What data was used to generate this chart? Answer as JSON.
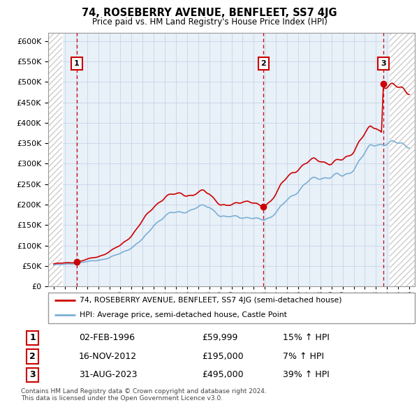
{
  "title": "74, ROSEBERRY AVENUE, BENFLEET, SS7 4JG",
  "subtitle": "Price paid vs. HM Land Registry's House Price Index (HPI)",
  "ylim": [
    0,
    620000
  ],
  "yticks": [
    0,
    50000,
    100000,
    150000,
    200000,
    250000,
    300000,
    350000,
    400000,
    450000,
    500000,
    550000,
    600000
  ],
  "xlim_start": 1993.5,
  "xlim_end": 2026.5,
  "hatch_left_end": 1994.75,
  "hatch_right_start": 2024.25,
  "sales": [
    {
      "year": 1996.08,
      "price": 59999,
      "label": "1"
    },
    {
      "year": 2012.88,
      "price": 195000,
      "label": "2"
    },
    {
      "year": 2023.66,
      "price": 495000,
      "label": "3"
    }
  ],
  "legend_line1": "74, ROSEBERRY AVENUE, BENFLEET, SS7 4JG (semi-detached house)",
  "legend_line2": "HPI: Average price, semi-detached house, Castle Point",
  "table_entries": [
    {
      "num": "1",
      "date": "02-FEB-1996",
      "price": "£59,999",
      "hpi": "15% ↑ HPI"
    },
    {
      "num": "2",
      "date": "16-NOV-2012",
      "price": "£195,000",
      "hpi": "7% ↑ HPI"
    },
    {
      "num": "3",
      "date": "31-AUG-2023",
      "price": "£495,000",
      "hpi": "39% ↑ HPI"
    }
  ],
  "footnote": "Contains HM Land Registry data © Crown copyright and database right 2024.\nThis data is licensed under the Open Government Licence v3.0.",
  "red_color": "#cc0000",
  "blue_color": "#7aafd4",
  "grid_color": "#c8d4e8",
  "plot_bg": "#e8f0f8",
  "white": "#ffffff"
}
